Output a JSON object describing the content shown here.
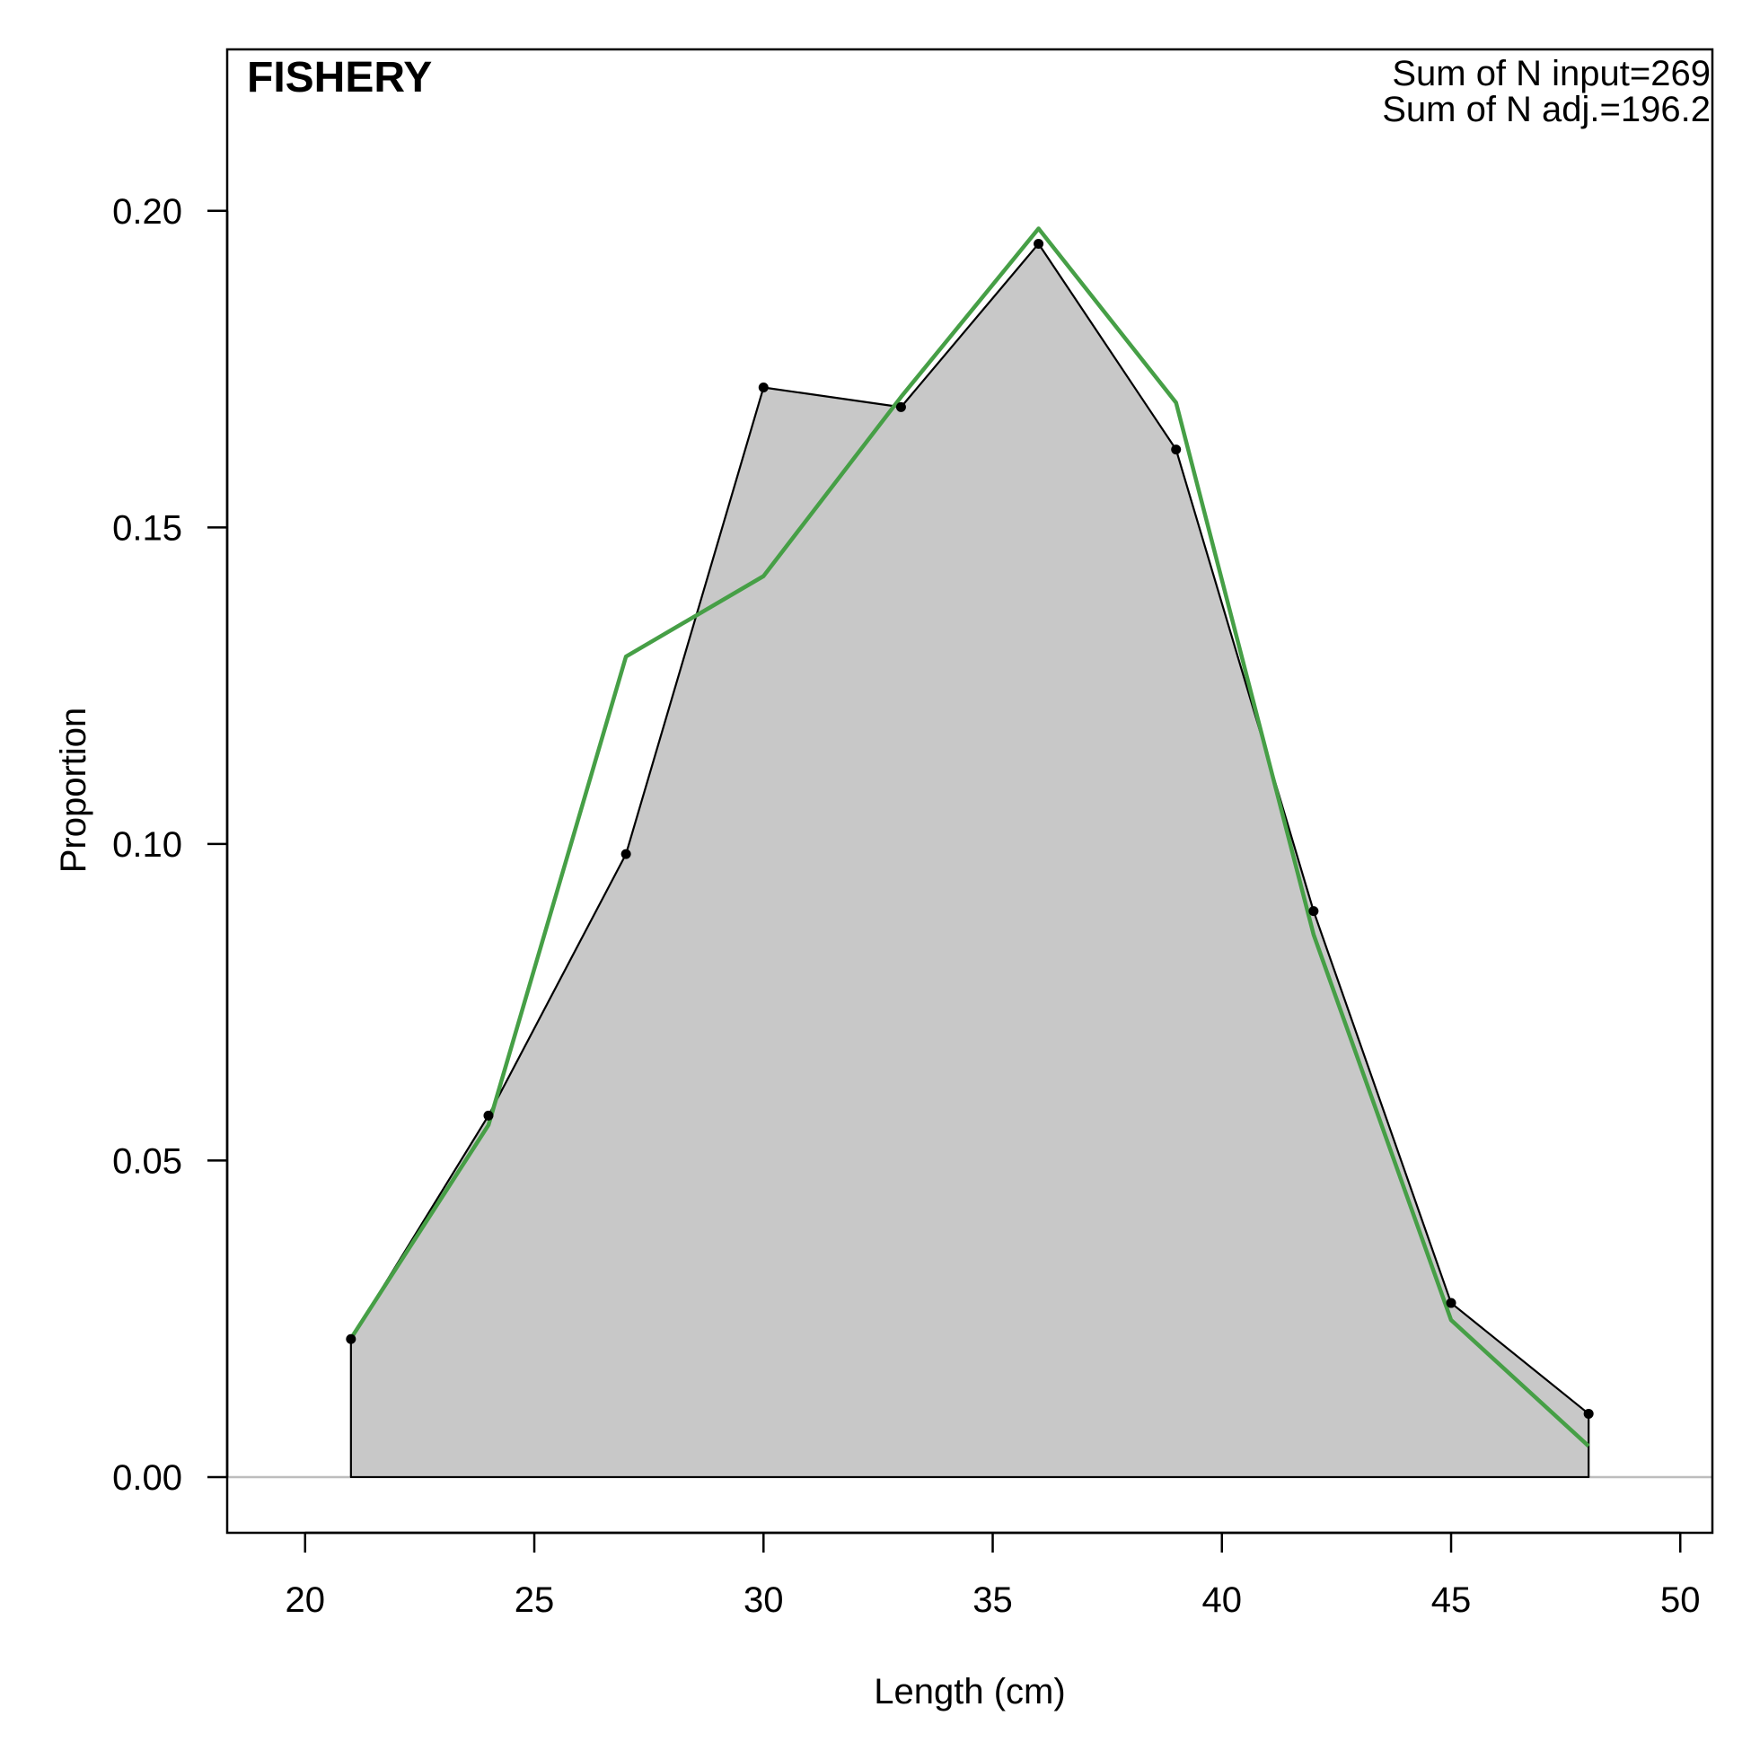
{
  "chart_data": {
    "type": "area",
    "title": "FISHERY",
    "annotations": [
      "Sum of N input=269",
      "Sum of N adj.=196.2"
    ],
    "xlabel": "Length (cm)",
    "ylabel": "Proportion",
    "xlim": [
      18.3,
      50.7
    ],
    "ylim": [
      -0.0088,
      0.2255
    ],
    "x_ticks": [
      20,
      25,
      30,
      35,
      40,
      45,
      50
    ],
    "x_tick_labels": [
      "20",
      "25",
      "30",
      "35",
      "40",
      "45",
      "50"
    ],
    "y_ticks": [
      0,
      0.05,
      0.1,
      0.15,
      0.2
    ],
    "y_tick_labels": [
      "0.00",
      "0.05",
      "0.10",
      "0.15",
      "0.20"
    ],
    "x": [
      21,
      24,
      27,
      30,
      33,
      36,
      39,
      42,
      45,
      48
    ],
    "series": [
      {
        "role": "observed",
        "values": [
          0.0218,
          0.0571,
          0.0984,
          0.1721,
          0.169,
          0.1948,
          0.1623,
          0.0894,
          0.0275,
          0.01
        ],
        "fill": "#c8c8c8",
        "stroke": "#000000"
      },
      {
        "role": "expected",
        "values": [
          0.0219,
          0.0556,
          0.1296,
          0.1423,
          0.1706,
          0.1972,
          0.1697,
          0.0857,
          0.0248,
          0.0049
        ],
        "stroke": "#469f46"
      }
    ],
    "zero_line_color": "#bdbdbd",
    "grid": false,
    "legend": "none"
  }
}
